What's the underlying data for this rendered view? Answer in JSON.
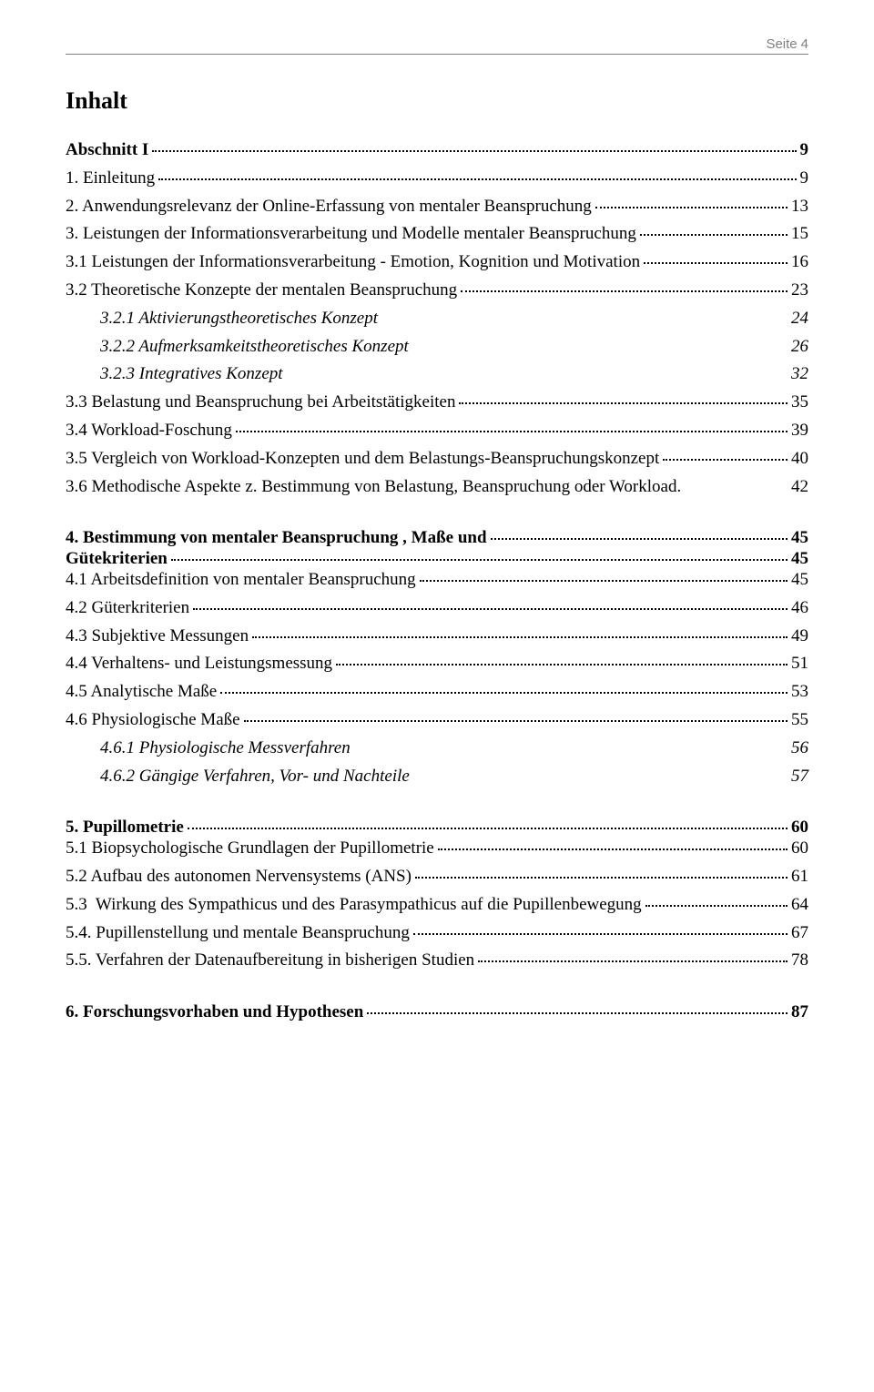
{
  "header": {
    "label": "Seite",
    "page_number": "4"
  },
  "title": "Inhalt",
  "toc": [
    {
      "label": "Abschnitt I",
      "page": "9",
      "bold": true,
      "leader": true,
      "spacing_after": "sm"
    },
    {
      "label": "1. Einleitung",
      "page": "9",
      "bold": false,
      "leader": true,
      "spacing_after": "sm"
    },
    {
      "label": "2. Anwendungsrelevanz der Online-Erfassung von mentaler Beanspruchung",
      "page": "13",
      "bold": false,
      "leader": true,
      "spacing_after": "sm"
    },
    {
      "label": "3. Leistungen der Informationsverarbeitung und Modelle mentaler Beanspruchung",
      "page": "15",
      "bold": false,
      "leader": true,
      "spacing_after": "sm"
    },
    {
      "label": "3.1 Leistungen der Informationsverarbeitung - Emotion, Kognition und Motivation",
      "page": "16",
      "bold": false,
      "leader": true,
      "spacing_after": "sm"
    },
    {
      "label": "3.2 Theoretische Konzepte der mentalen Beanspruchung",
      "page": "23",
      "bold": false,
      "leader": true,
      "spacing_after": "sm"
    },
    {
      "label": "3.2.1 Aktivierungstheoretisches Konzept",
      "page": "24",
      "bold": false,
      "leader": false,
      "italic": true,
      "indent": 1,
      "spacing_after": "sm"
    },
    {
      "label": "3.2.2 Aufmerksamkeitstheoretisches Konzept",
      "page": "26",
      "bold": false,
      "leader": false,
      "italic": true,
      "indent": 1,
      "spacing_after": "sm"
    },
    {
      "label": "3.2.3 Integratives Konzept",
      "page": "32",
      "bold": false,
      "leader": false,
      "italic": true,
      "indent": 1,
      "spacing_after": "sm"
    },
    {
      "label": "3.3 Belastung und Beanspruchung bei Arbeitstätigkeiten",
      "page": "35",
      "bold": false,
      "leader": true,
      "spacing_after": "sm"
    },
    {
      "label": "3.4 Workload-Foschung",
      "page": "39",
      "bold": false,
      "leader": true,
      "spacing_after": "sm"
    },
    {
      "label": "3.5 Vergleich von Workload-Konzepten und dem Belastungs-Beanspruchungskonzept",
      "page": "40",
      "bold": false,
      "leader": true,
      "spacing_after": "sm"
    },
    {
      "label": "3.6 Methodische Aspekte z. Bestimmung von Belastung, Beanspruchung oder Workload.",
      "page": "42",
      "bold": false,
      "leader": false,
      "spacing_after": "lg"
    },
    {
      "label": "4. Bestimmung von mentaler Beanspruchung , Maße und",
      "page": "45",
      "bold": true,
      "leader": true,
      "spacing_after": "none"
    },
    {
      "label": "Gütekriterien",
      "page": "45",
      "bold": true,
      "leader": true,
      "spacing_after": "none"
    },
    {
      "label": "4.1 Arbeitsdefinition von mentaler Beanspruchung",
      "page": "45",
      "bold": false,
      "leader": true,
      "spacing_after": "sm"
    },
    {
      "label": "4.2 Güterkriterien",
      "page": "46",
      "bold": false,
      "leader": true,
      "spacing_after": "sm"
    },
    {
      "label": "4.3 Subjektive Messungen",
      "page": "49",
      "bold": false,
      "leader": true,
      "spacing_after": "sm"
    },
    {
      "label": "4.4 Verhaltens- und Leistungsmessung",
      "page": "51",
      "bold": false,
      "leader": true,
      "spacing_after": "sm"
    },
    {
      "label": "4.5 Analytische Maße",
      "page": "53",
      "bold": false,
      "leader": true,
      "spacing_after": "sm"
    },
    {
      "label": "4.6 Physiologische Maße",
      "page": "55",
      "bold": false,
      "leader": true,
      "spacing_after": "sm"
    },
    {
      "label": "4.6.1 Physiologische Messverfahren",
      "page": "56",
      "bold": false,
      "leader": false,
      "italic": true,
      "indent": 1,
      "spacing_after": "sm"
    },
    {
      "label": "4.6.2 Gängige Verfahren, Vor- und Nachteile",
      "page": "57",
      "bold": false,
      "leader": false,
      "italic": true,
      "indent": 1,
      "spacing_after": "lg"
    },
    {
      "label": "5. Pupillometrie",
      "page": "60",
      "bold": true,
      "leader": true,
      "spacing_after": "none"
    },
    {
      "label": "5.1 Biopsychologische Grundlagen der Pupillometrie",
      "page": "60",
      "bold": false,
      "leader": true,
      "spacing_after": "sm"
    },
    {
      "label": "5.2 Aufbau des autonomen Nervensystems (ANS)",
      "page": "61",
      "bold": false,
      "leader": true,
      "spacing_after": "sm"
    },
    {
      "label": "5.3  Wirkung des Sympathicus und des Parasympathicus auf die Pupillenbewegung",
      "page": "64",
      "bold": false,
      "leader": true,
      "spacing_after": "sm"
    },
    {
      "label": "5.4. Pupillenstellung und mentale Beanspruchung",
      "page": "67",
      "bold": false,
      "leader": true,
      "spacing_after": "sm"
    },
    {
      "label": "5.5. Verfahren der Datenaufbereitung in bisherigen Studien",
      "page": "78",
      "bold": false,
      "leader": true,
      "spacing_after": "lg"
    },
    {
      "label": "6. Forschungsvorhaben und Hypothesen",
      "page": "87",
      "bold": true,
      "leader": true,
      "spacing_after": "none"
    }
  ]
}
